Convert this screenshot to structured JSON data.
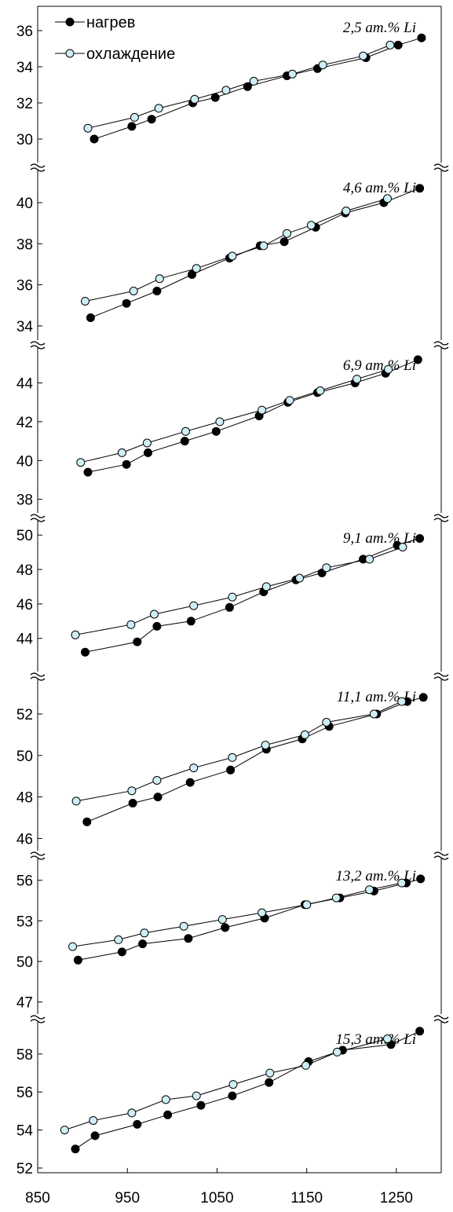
{
  "chart_data": {
    "type": "line",
    "x_axis": {
      "range": [
        850,
        1300
      ],
      "ticks": [
        850,
        950,
        1050,
        1150,
        1250
      ]
    },
    "legend": {
      "placement": "top-left",
      "entries": [
        {
          "label": "нагрев",
          "marker": "filled-circle",
          "color": "#000000"
        },
        {
          "label": "охлаждение",
          "marker": "open-circle",
          "color": "#cdeff5"
        }
      ]
    },
    "panels": [
      {
        "label": "2,5 ат.% Li",
        "ylim": [
          29,
          37
        ],
        "yticks": [
          30,
          32,
          34,
          36
        ],
        "series": [
          {
            "name": "нагрев",
            "x": [
              913,
              955,
              977,
              1023,
              1048,
              1084,
              1128,
              1162,
              1216,
              1252,
              1278
            ],
            "y": [
              30.0,
              30.7,
              31.1,
              32.0,
              32.3,
              32.9,
              33.5,
              33.9,
              34.5,
              35.2,
              35.6
            ]
          },
          {
            "name": "охлаждение",
            "x": [
              906,
              958,
              985,
              1025,
              1060,
              1091,
              1134,
              1168,
              1213,
              1243
            ],
            "y": [
              30.6,
              31.2,
              31.7,
              32.2,
              32.7,
              33.2,
              33.6,
              34.1,
              34.6,
              35.2
            ]
          }
        ]
      },
      {
        "label": "4,6 ат.% Li",
        "ylim": [
          33.5,
          41.3
        ],
        "yticks": [
          34,
          36,
          38,
          40
        ],
        "series": [
          {
            "name": "нагрев",
            "x": [
              909,
              949,
              983,
              1022,
              1064,
              1098,
              1125,
              1160,
              1193,
              1236,
              1276
            ],
            "y": [
              34.4,
              35.1,
              35.7,
              36.5,
              37.3,
              37.9,
              38.1,
              38.8,
              39.5,
              40.0,
              40.7
            ]
          },
          {
            "name": "охлаждение",
            "x": [
              903,
              957,
              986,
              1027,
              1067,
              1102,
              1128,
              1155,
              1194,
              1240
            ],
            "y": [
              35.2,
              35.7,
              36.3,
              36.8,
              37.4,
              37.9,
              38.5,
              38.9,
              39.6,
              40.2
            ]
          }
        ]
      },
      {
        "label": "6,9 ат.% Li",
        "ylim": [
          37.5,
          45.6
        ],
        "yticks": [
          38,
          40,
          42,
          44
        ],
        "series": [
          {
            "name": "нагрев",
            "x": [
              906,
              949,
              973,
              1014,
              1049,
              1097,
              1129,
              1162,
              1204,
              1238,
              1274
            ],
            "y": [
              39.4,
              39.8,
              40.4,
              41.0,
              41.5,
              42.3,
              43.0,
              43.5,
              44.0,
              44.5,
              45.2
            ]
          },
          {
            "name": "охлаждение",
            "x": [
              898,
              944,
              972,
              1015,
              1053,
              1100,
              1131,
              1165,
              1206,
              1241
            ],
            "y": [
              39.9,
              40.4,
              40.9,
              41.5,
              42.0,
              42.6,
              43.1,
              43.6,
              44.2,
              44.7
            ]
          }
        ]
      },
      {
        "label": "9,1 ат.% Li",
        "ylim": [
          42.3,
          50.6
        ],
        "yticks": [
          44,
          46,
          48,
          50
        ],
        "series": [
          {
            "name": "нагрев",
            "x": [
              903,
              961,
              983,
              1021,
              1064,
              1102,
              1138,
              1167,
              1213,
              1251,
              1276
            ],
            "y": [
              43.2,
              43.8,
              44.7,
              45.0,
              45.8,
              46.7,
              47.4,
              47.8,
              48.6,
              49.4,
              49.8
            ]
          },
          {
            "name": "охлаждение",
            "x": [
              892,
              954,
              980,
              1024,
              1067,
              1105,
              1142,
              1172,
              1220,
              1257
            ],
            "y": [
              44.2,
              44.8,
              45.4,
              45.9,
              46.4,
              47.0,
              47.5,
              48.1,
              48.6,
              49.3
            ]
          }
        ]
      },
      {
        "label": "11,1 ат.% Li",
        "ylim": [
          45.6,
          53.4
        ],
        "yticks": [
          46,
          48,
          50,
          52
        ],
        "series": [
          {
            "name": "нагрев",
            "x": [
              905,
              956,
              984,
              1020,
              1065,
              1105,
              1145,
              1175,
              1228,
              1262,
              1280
            ],
            "y": [
              46.8,
              47.7,
              48.0,
              48.7,
              49.3,
              50.3,
              50.8,
              51.4,
              52.0,
              52.6,
              52.8
            ]
          },
          {
            "name": "охлаждение",
            "x": [
              893,
              955,
              983,
              1024,
              1067,
              1104,
              1148,
              1172,
              1225,
              1256
            ],
            "y": [
              47.8,
              48.3,
              48.8,
              49.4,
              49.9,
              50.5,
              51.0,
              51.6,
              52.0,
              52.6
            ]
          }
        ]
      },
      {
        "label": "13,2 ат.% Li",
        "ylim": [
          46.4,
          57.2
        ],
        "yticks": [
          47,
          50,
          53,
          56
        ],
        "series": [
          {
            "name": "нагрев",
            "x": [
              895,
              944,
              967,
              1018,
              1059,
              1103,
              1148,
              1187,
              1225,
              1261,
              1277
            ],
            "y": [
              50.1,
              50.7,
              51.3,
              51.7,
              52.5,
              53.2,
              54.2,
              54.7,
              55.2,
              55.8,
              56.1
            ]
          },
          {
            "name": "охлаждение",
            "x": [
              889,
              940,
              969,
              1013,
              1056,
              1100,
              1150,
              1183,
              1220,
              1256
            ],
            "y": [
              51.1,
              51.6,
              52.1,
              52.6,
              53.1,
              53.6,
              54.2,
              54.7,
              55.3,
              55.8
            ]
          }
        ]
      },
      {
        "label": "15,3 ат.% Li",
        "ylim": [
          52,
          59.4
        ],
        "yticks": [
          52,
          54,
          56,
          58
        ],
        "series": [
          {
            "name": "нагрев",
            "x": [
              892,
              914,
              961,
              995,
              1032,
              1067,
              1108,
              1152,
              1190,
              1244,
              1276
            ],
            "y": [
              53.0,
              53.7,
              54.3,
              54.8,
              55.3,
              55.8,
              56.5,
              57.6,
              58.2,
              58.5,
              59.2
            ]
          },
          {
            "name": "охлаждение",
            "x": [
              880,
              912,
              955,
              993,
              1027,
              1068,
              1109,
              1149,
              1184,
              1240
            ],
            "y": [
              54.0,
              54.5,
              54.9,
              55.6,
              55.8,
              56.4,
              57.0,
              57.4,
              58.1,
              58.8
            ]
          }
        ]
      }
    ]
  }
}
